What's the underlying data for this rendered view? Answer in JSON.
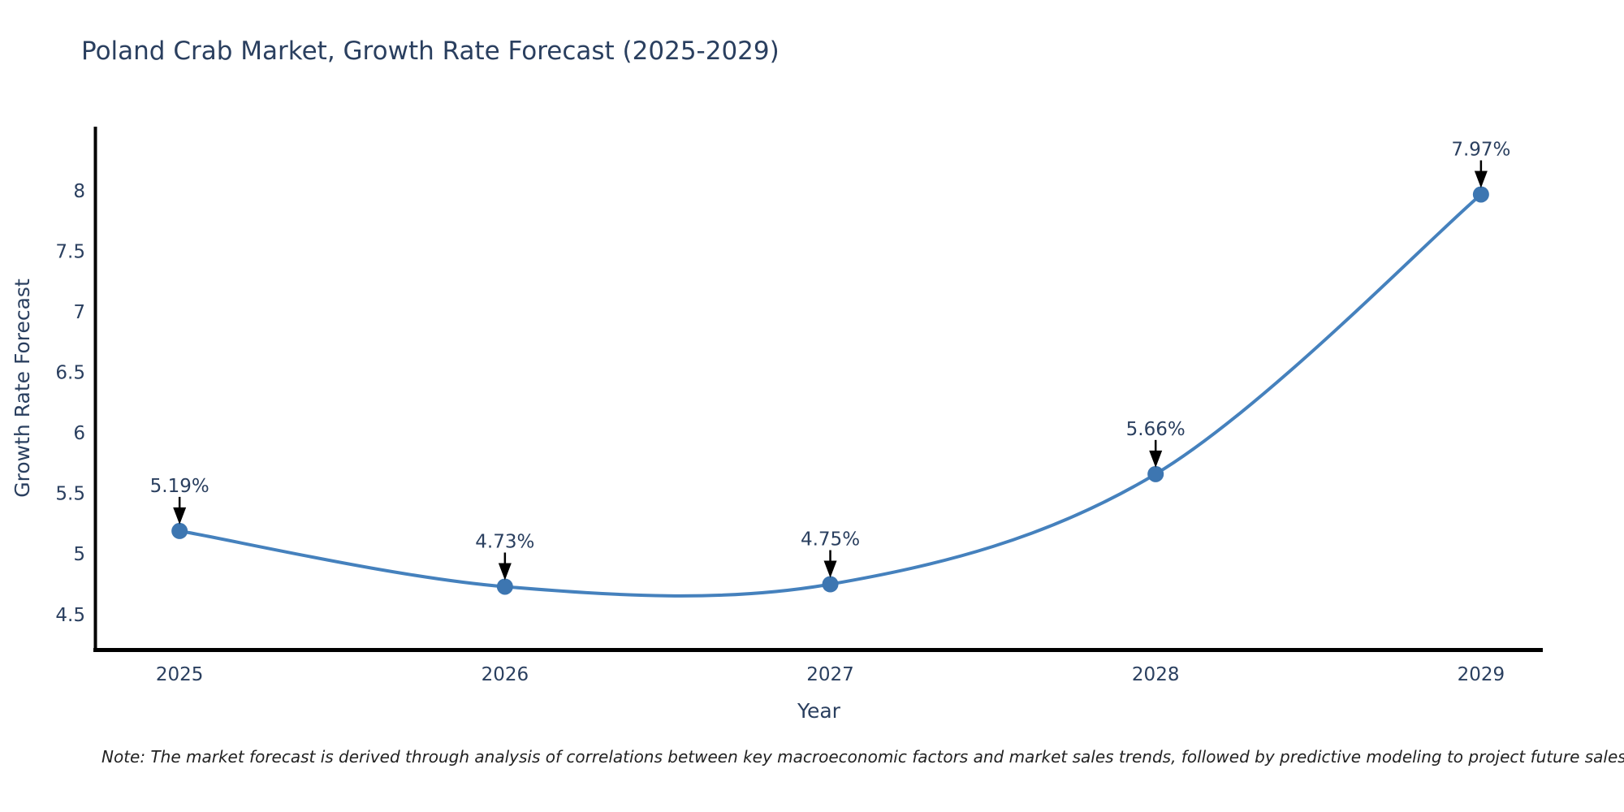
{
  "header": {
    "title": "Poland Crab Market, Growth Rate Forecast (2025-2029)"
  },
  "footnote": "Note: The market forecast is derived through analysis of correlations between key macroeconomic factors and market sales trends, followed by predictive modeling to project future sales",
  "chart_data": {
    "type": "line",
    "line_shape": "spline",
    "title": "Poland Crab Market, Growth Rate Forecast (2025-2029)",
    "xlabel": "Year",
    "ylabel": "Growth Rate Forecast",
    "x": [
      2025,
      2026,
      2027,
      2028,
      2029
    ],
    "x_tick_labels": [
      "2025",
      "2026",
      "2027",
      "2028",
      "2029"
    ],
    "series": [
      {
        "name": "Growth Rate Forecast",
        "values": [
          5.19,
          4.73,
          4.75,
          5.66,
          7.97
        ]
      }
    ],
    "point_labels": [
      "5.19%",
      "4.73%",
      "4.75%",
      "5.66%",
      "7.97%"
    ],
    "ytick_values": [
      4.5,
      5,
      5.5,
      6,
      6.5,
      7,
      7.5,
      8
    ],
    "ytick_labels": [
      "4.5",
      "5",
      "5.5",
      "6",
      "6.5",
      "7",
      "7.5",
      "8"
    ],
    "xlim": [
      2024.74,
      2029.19
    ],
    "ylim": [
      4.21,
      8.53
    ],
    "grid": false,
    "legend_visible": false,
    "markers": true,
    "colors": {
      "line": "#4581bd",
      "marker": "#3d76b1",
      "axis": "#000000",
      "text": "#2a3f5f",
      "annotation": "#2a3f5f",
      "annotation_arrow": "#000000",
      "background": "#ffffff"
    }
  }
}
